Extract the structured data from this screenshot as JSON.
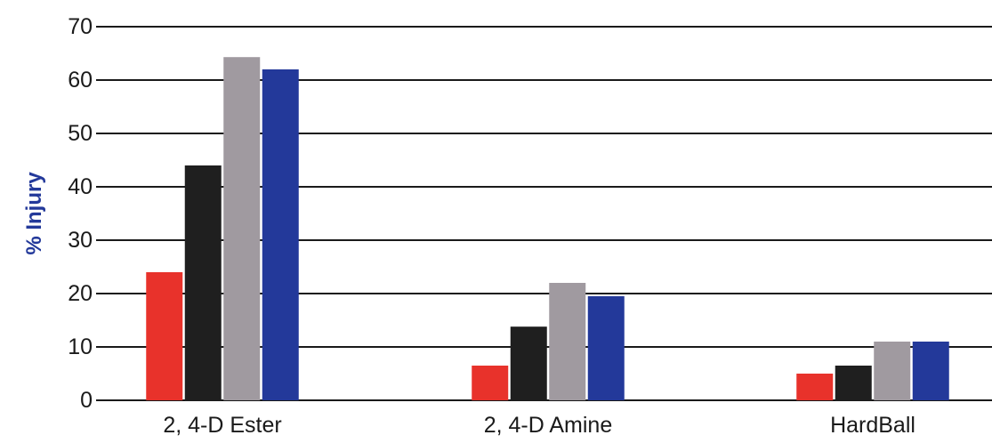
{
  "chart_data": {
    "type": "bar",
    "title": "",
    "ylabel": "% Injury",
    "xlabel": "",
    "categories": [
      "2, 4-D Ester",
      "2, 4-D Amine",
      "HardBall"
    ],
    "series": [
      {
        "values": [
          24,
          6.5,
          5
        ],
        "color": "#e8322b"
      },
      {
        "values": [
          44,
          13.8,
          6.5
        ],
        "color": "#1f1f1f"
      },
      {
        "values": [
          64.3,
          22,
          11
        ],
        "color": "#a09aa0"
      },
      {
        "values": [
          62,
          19.5,
          11
        ],
        "color": "#23399a"
      }
    ],
    "ylim": [
      0,
      70
    ],
    "yticks": [
      0,
      10,
      20,
      30,
      40,
      50,
      60,
      70
    ],
    "grid": true,
    "legend": "none"
  },
  "colors": {
    "accent": "#23399a",
    "axis": "#1a1a1a"
  }
}
